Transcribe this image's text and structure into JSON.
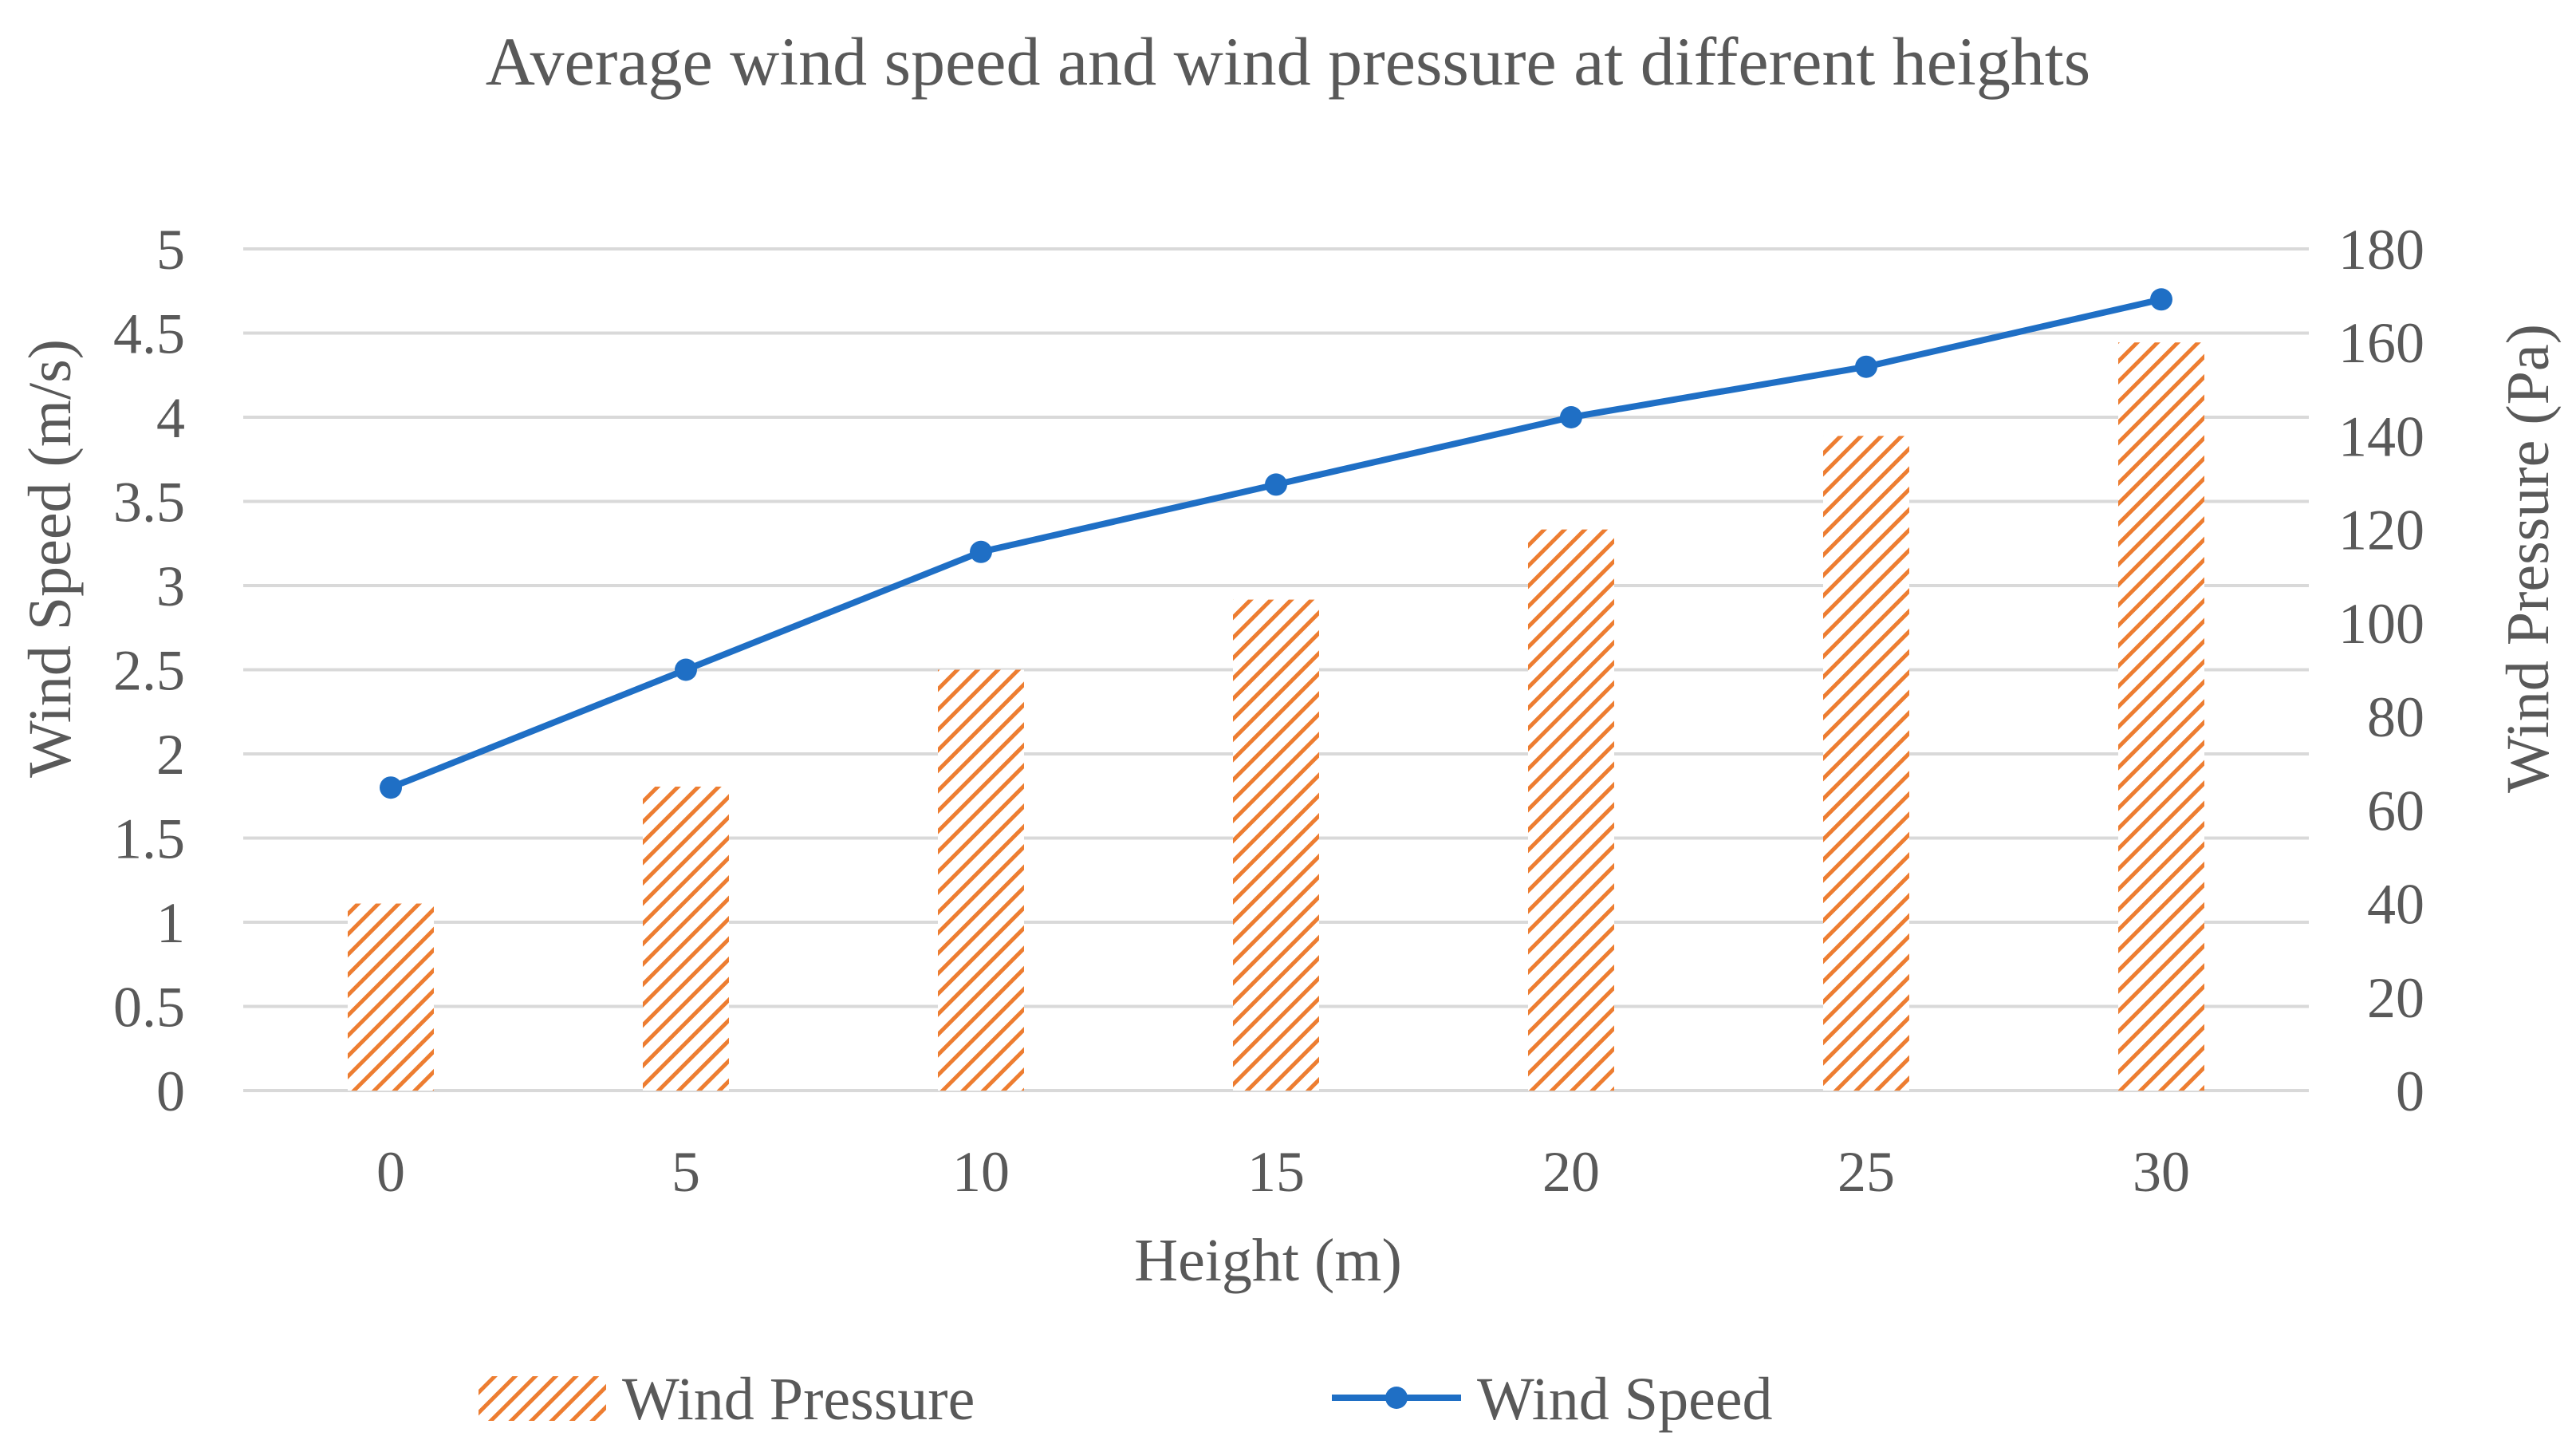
{
  "chart_data": {
    "type": "bar",
    "title": "Average wind speed and wind pressure at different heights",
    "xlabel": "Height (m)",
    "ylabel": "Wind Speed (m/s)",
    "y2label": "Wind Pressure (Pa)",
    "categories": [
      "0",
      "5",
      "10",
      "15",
      "20",
      "25",
      "30"
    ],
    "ylim": [
      0,
      5
    ],
    "y2lim": [
      0,
      180
    ],
    "yticks": [
      "0",
      "0.5",
      "1",
      "1.5",
      "2",
      "2.5",
      "3",
      "3.5",
      "4",
      "4.5",
      "5"
    ],
    "y2ticks": [
      "0",
      "20",
      "40",
      "60",
      "80",
      "100",
      "120",
      "140",
      "160",
      "180"
    ],
    "grid": true,
    "legend_position": "bottom",
    "series": [
      {
        "name": "Wind Pressure",
        "type": "bar",
        "axis": "right",
        "pattern": "diagonal-hatch",
        "color": "#ED7D31",
        "values": [
          40,
          65,
          90,
          105,
          120,
          140,
          160
        ]
      },
      {
        "name": "Wind Speed",
        "type": "line",
        "axis": "left",
        "marker": "circle",
        "color": "#1F6FC5",
        "values": [
          1.8,
          2.5,
          3.2,
          3.6,
          4.0,
          4.3,
          4.7
        ]
      }
    ]
  }
}
